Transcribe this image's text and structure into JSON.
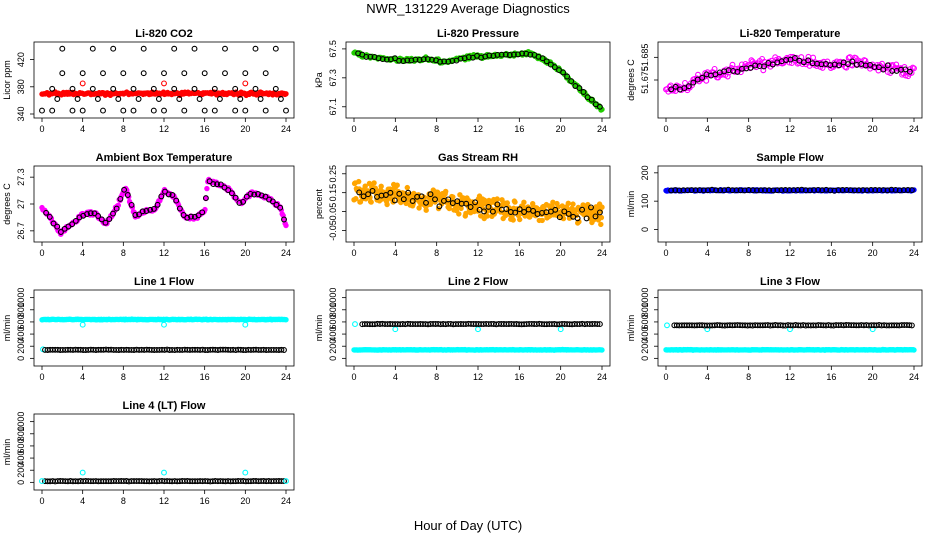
{
  "figure": {
    "title": "NWR_131229  Average Diagnostics",
    "xlabel": "Hour of Day (UTC)"
  },
  "colors": {
    "black": "#000000",
    "red": "#ff0000",
    "green": "#22cc00",
    "magenta": "#ff00ff",
    "orange": "#ffa500",
    "blue": "#0000ff",
    "cyan": "#00ffff"
  },
  "chart_data": [
    {
      "type": "scatter",
      "title": "Li-820 CO2",
      "ylabel": "Licor ppm",
      "xlim": [
        0,
        24
      ],
      "ylim": [
        340,
        440
      ],
      "xticks": [
        0,
        4,
        8,
        12,
        16,
        20,
        24
      ],
      "yticks": [
        340,
        380,
        420
      ],
      "series": [
        {
          "name": "raw",
          "color": "red",
          "style": "dense",
          "gen": {
            "kind": "flat",
            "level": 370,
            "noise": 2,
            "start": 0,
            "end": 24,
            "n": 240,
            "seed": 1
          }
        },
        {
          "name": "cal",
          "color": "black",
          "style": "open",
          "x": [
            0,
            1,
            2,
            3,
            4,
            5,
            6,
            7,
            8,
            9,
            10,
            11,
            12,
            13,
            14,
            15,
            16,
            17,
            18,
            19,
            20,
            21,
            22,
            23,
            24,
            1.5,
            3.5,
            5.5,
            7.5,
            9.5,
            11.5,
            13.5,
            15.5,
            17.5,
            19.5,
            21.5,
            23.5,
            2,
            4,
            6,
            8,
            10,
            12,
            14,
            16,
            18,
            20,
            22,
            1,
            3,
            5,
            7,
            9,
            11,
            13,
            15,
            17,
            19,
            21,
            23
          ],
          "y": [
            345,
            345,
            436,
            345,
            345,
            436,
            345,
            436,
            345,
            345,
            436,
            345,
            345,
            436,
            345,
            436,
            345,
            345,
            436,
            345,
            345,
            436,
            345,
            436,
            345,
            362,
            362,
            362,
            362,
            362,
            362,
            362,
            362,
            362,
            362,
            362,
            362,
            400,
            400,
            400,
            400,
            400,
            400,
            400,
            400,
            400,
            400,
            400,
            377,
            377,
            377,
            377,
            377,
            377,
            377,
            377,
            377,
            377,
            377,
            377
          ]
        },
        {
          "name": "ref",
          "color": "red",
          "style": "open",
          "x": [
            4,
            12,
            20
          ],
          "y": [
            385,
            385,
            385
          ]
        }
      ]
    },
    {
      "type": "scatter",
      "title": "Li-820 Pressure",
      "ylabel": "kPa",
      "xlim": [
        0,
        24
      ],
      "ylim": [
        67.05,
        67.52
      ],
      "xticks": [
        0,
        4,
        8,
        12,
        16,
        20,
        24
      ],
      "yticks": [
        67.1,
        67.3,
        67.5
      ],
      "series": [
        {
          "name": "raw",
          "color": "green",
          "style": "dense",
          "gen": {
            "kind": "pressure",
            "noise": 0.012,
            "start": 0,
            "end": 24,
            "n": 260,
            "seed": 2
          }
        },
        {
          "name": "cal",
          "color": "black",
          "style": "open",
          "gen": {
            "kind": "pressure",
            "noise": 0.008,
            "start": 0.4,
            "end": 23.8,
            "n": 60,
            "seed": 3
          }
        }
      ]
    },
    {
      "type": "scatter",
      "title": "Li-820 Temperature",
      "ylabel": "degrees C",
      "xlim": [
        0,
        24
      ],
      "ylim": [
        51.66,
        51.69
      ],
      "xticks": [
        0,
        4,
        8,
        12,
        16,
        20,
        24
      ],
      "yticks": [
        51.675,
        51.685
      ],
      "series": [
        {
          "name": "raw",
          "color": "magenta",
          "style": "open",
          "gen": {
            "kind": "licortemp",
            "noise": 0.0022,
            "start": 0,
            "end": 24,
            "n": 210,
            "seed": 4
          }
        },
        {
          "name": "cal",
          "color": "black",
          "style": "open",
          "gen": {
            "kind": "licortemp",
            "noise": 0.0012,
            "start": 0.5,
            "end": 23.6,
            "n": 55,
            "seed": 5
          }
        }
      ]
    },
    {
      "type": "scatter",
      "title": "Ambient Box Temperature",
      "ylabel": "degrees C",
      "xlim": [
        0,
        24
      ],
      "ylim": [
        26.62,
        27.38
      ],
      "xticks": [
        0,
        4,
        8,
        12,
        16,
        20,
        24
      ],
      "yticks": [
        26.7,
        27.0,
        27.3
      ],
      "series": [
        {
          "name": "raw",
          "color": "magenta",
          "style": "dense",
          "gen": {
            "kind": "ambient",
            "noise": 0.02,
            "start": 0,
            "end": 24,
            "n": 260,
            "seed": 6
          }
        },
        {
          "name": "cal",
          "color": "black",
          "style": "open",
          "gen": {
            "kind": "ambient",
            "noise": 0.015,
            "start": 0.4,
            "end": 23.8,
            "n": 65,
            "seed": 7
          }
        }
      ]
    },
    {
      "type": "scatter",
      "title": "Gas Stream RH",
      "ylabel": "percent",
      "xlim": [
        0,
        24
      ],
      "ylim": [
        -0.09,
        0.27
      ],
      "xticks": [
        0,
        4,
        8,
        12,
        16,
        20,
        24
      ],
      "yticks": [
        -0.05,
        0.05,
        0.15,
        0.25
      ],
      "series": [
        {
          "name": "raw",
          "color": "orange",
          "style": "dense",
          "gen": {
            "kind": "rh",
            "noise": 0.05,
            "start": 0,
            "end": 24,
            "n": 420,
            "seed": 8
          }
        },
        {
          "name": "cal",
          "color": "black",
          "style": "open",
          "gen": {
            "kind": "rh",
            "noise": 0.03,
            "start": 0.5,
            "end": 23.8,
            "n": 55,
            "seed": 9
          }
        }
      ]
    },
    {
      "type": "scatter",
      "title": "Sample Flow",
      "ylabel": "ml/min",
      "xlim": [
        0,
        24
      ],
      "ylim": [
        -30,
        210
      ],
      "xticks": [
        0,
        4,
        8,
        12,
        16,
        20,
        24
      ],
      "yticks": [
        0,
        100,
        200
      ],
      "series": [
        {
          "name": "raw",
          "color": "blue",
          "style": "dense",
          "gen": {
            "kind": "flat",
            "level": 138,
            "noise": 2,
            "start": 0,
            "end": 24,
            "n": 260,
            "seed": 10
          }
        },
        {
          "name": "cal",
          "color": "black",
          "style": "open",
          "gen": {
            "kind": "flat",
            "level": 139,
            "noise": 1.5,
            "start": 0.5,
            "end": 23.8,
            "n": 60,
            "seed": 11
          }
        }
      ]
    },
    {
      "type": "scatter",
      "title": "Line 1 Flow",
      "ylabel": "ml/min",
      "xlim": [
        0,
        24
      ],
      "ylim": [
        -60,
        1060
      ],
      "xticks": [
        0,
        4,
        8,
        12,
        16,
        20,
        24
      ],
      "yticks": [
        0,
        200,
        400,
        600,
        800,
        1000
      ],
      "series": [
        {
          "name": "cyan-high",
          "color": "cyan",
          "style": "dense",
          "gen": {
            "kind": "flat",
            "level": 640,
            "noise": 5,
            "start": 0,
            "end": 24,
            "n": 240,
            "seed": 12
          }
        },
        {
          "name": "cyan-dip",
          "color": "cyan",
          "style": "open",
          "x": [
            4,
            12,
            20
          ],
          "y": [
            555,
            555,
            555
          ]
        },
        {
          "name": "cyan-low",
          "color": "cyan",
          "style": "open",
          "x": [
            0.1
          ],
          "y": [
            150
          ]
        },
        {
          "name": "black-low",
          "color": "black",
          "style": "open",
          "gen": {
            "kind": "flat",
            "level": 140,
            "noise": 3,
            "start": 0.3,
            "end": 23.8,
            "n": 95,
            "seed": 13
          }
        }
      ]
    },
    {
      "type": "scatter",
      "title": "Line 2 Flow",
      "ylabel": "ml/min",
      "xlim": [
        0,
        24
      ],
      "ylim": [
        -60,
        1060
      ],
      "xticks": [
        0,
        4,
        8,
        12,
        16,
        20,
        24
      ],
      "yticks": [
        0,
        200,
        400,
        600,
        800,
        1000
      ],
      "series": [
        {
          "name": "cyan-low",
          "color": "cyan",
          "style": "dense",
          "gen": {
            "kind": "flat",
            "level": 140,
            "noise": 4,
            "start": 0,
            "end": 24,
            "n": 240,
            "seed": 14
          }
        },
        {
          "name": "cyan-dip",
          "color": "cyan",
          "style": "open",
          "x": [
            0.1,
            4,
            12,
            20
          ],
          "y": [
            565,
            480,
            480,
            480
          ]
        },
        {
          "name": "black-high",
          "color": "black",
          "style": "open",
          "gen": {
            "kind": "flat",
            "level": 565,
            "noise": 4,
            "start": 0.8,
            "end": 23.8,
            "n": 95,
            "seed": 15
          }
        }
      ]
    },
    {
      "type": "scatter",
      "title": "Line 3 Flow",
      "ylabel": "ml/min",
      "xlim": [
        0,
        24
      ],
      "ylim": [
        -60,
        1060
      ],
      "xticks": [
        0,
        4,
        8,
        12,
        16,
        20,
        24
      ],
      "yticks": [
        0,
        200,
        400,
        600,
        800,
        1000
      ],
      "series": [
        {
          "name": "cyan-low",
          "color": "cyan",
          "style": "dense",
          "gen": {
            "kind": "flat",
            "level": 140,
            "noise": 4,
            "start": 0,
            "end": 24,
            "n": 240,
            "seed": 16
          }
        },
        {
          "name": "cyan-dip",
          "color": "cyan",
          "style": "open",
          "x": [
            0.1,
            4,
            12,
            20
          ],
          "y": [
            545,
            480,
            480,
            480
          ]
        },
        {
          "name": "black-high",
          "color": "black",
          "style": "open",
          "gen": {
            "kind": "flat",
            "level": 545,
            "noise": 4,
            "start": 0.8,
            "end": 23.8,
            "n": 95,
            "seed": 17
          }
        }
      ]
    },
    {
      "type": "scatter",
      "title": "Line 4 (LT) Flow",
      "ylabel": "ml/min",
      "xlim": [
        0,
        24
      ],
      "ylim": [
        -60,
        1060
      ],
      "xticks": [
        0,
        4,
        8,
        12,
        16,
        20,
        24
      ],
      "yticks": [
        0,
        200,
        400,
        600,
        800,
        1000
      ],
      "series": [
        {
          "name": "black-base",
          "color": "black",
          "style": "open",
          "gen": {
            "kind": "flat",
            "level": 20,
            "noise": 3,
            "start": 0.3,
            "end": 23.8,
            "n": 95,
            "seed": 18
          }
        },
        {
          "name": "cyan-base",
          "color": "cyan",
          "style": "open",
          "x": [
            0,
            24
          ],
          "y": [
            20,
            20
          ]
        },
        {
          "name": "cyan-spike",
          "color": "cyan",
          "style": "open",
          "x": [
            4,
            12,
            20
          ],
          "y": [
            160,
            160,
            160
          ]
        }
      ]
    }
  ]
}
